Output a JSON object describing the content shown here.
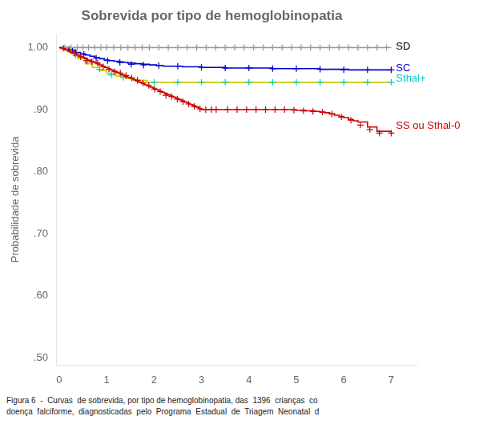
{
  "chart_data": {
    "type": "line",
    "title": "Sobrevida por tipo de hemoglobinopatia",
    "ylabel": "Probabilidade de sobrevida",
    "caption": [
      "Figura 6  -  Curvas  de sobrevida, por tipo de hemoglobinopatia, das  1396  crianças  co",
      "doença  falciforme,  diagnosticadas  pelo  Programa  Estadual  de  Triagem  Neonatal  d"
    ],
    "xlim": [
      -0.05,
      7.55
    ],
    "ylim": [
      0.488,
      1.022
    ],
    "xticks": [
      0,
      1,
      2,
      3,
      4,
      5,
      6,
      7
    ],
    "yticks": [
      {
        "value": 0.5,
        "label": ".50"
      },
      {
        "value": 0.6,
        "label": ".60"
      },
      {
        "value": 0.7,
        "label": ".70"
      },
      {
        "value": 0.8,
        "label": ".80"
      },
      {
        "value": 0.9,
        "label": ".90"
      },
      {
        "value": 1.0,
        "label": "1.00"
      }
    ],
    "grid": false,
    "series": [
      {
        "name": "SD",
        "type": "line",
        "line_style": "step",
        "color": "#999999",
        "x": [
          0.0,
          7.0
        ],
        "values": [
          1.0,
          1.0
        ]
      },
      {
        "name": "SD",
        "type": "scatter",
        "marker": "+",
        "color": "#999999",
        "x": [
          0.12,
          0.25,
          0.38,
          0.5,
          0.62,
          0.75,
          0.88,
          1.0,
          1.15,
          1.3,
          1.45,
          1.6,
          1.75,
          1.9,
          2.1,
          2.3,
          2.5,
          2.7,
          2.9,
          3.1,
          3.3,
          3.5,
          3.7,
          3.9,
          4.1,
          4.3,
          4.5,
          4.7,
          4.9,
          5.1,
          5.3,
          5.5,
          5.7,
          5.9,
          6.1,
          6.3,
          6.5,
          6.7,
          6.9
        ],
        "values": [
          1.0,
          1.0,
          1.0,
          1.0,
          1.0,
          1.0,
          1.0,
          1.0,
          1.0,
          1.0,
          1.0,
          1.0,
          1.0,
          1.0,
          1.0,
          1.0,
          1.0,
          1.0,
          1.0,
          1.0,
          1.0,
          1.0,
          1.0,
          1.0,
          1.0,
          1.0,
          1.0,
          1.0,
          1.0,
          1.0,
          1.0,
          1.0,
          1.0,
          1.0,
          1.0,
          1.0,
          1.0,
          1.0,
          1.0
        ]
      },
      {
        "name": "SC",
        "type": "line",
        "line_style": "step",
        "color": "#0000cc",
        "x": [
          0,
          0.2,
          0.35,
          0.45,
          0.55,
          0.65,
          0.75,
          0.85,
          0.95,
          1.05,
          1.15,
          1.25,
          1.35,
          1.45,
          1.6,
          1.75,
          1.9,
          2.05,
          2.2,
          2.4,
          2.6,
          2.8,
          3.0,
          3.5,
          4.0,
          4.5,
          5.0,
          5.5,
          5.7,
          5.9,
          6.1,
          6.5,
          7.0
        ],
        "values": [
          1.0,
          0.996,
          0.992,
          0.99,
          0.988,
          0.986,
          0.984,
          0.982,
          0.98,
          0.979,
          0.978,
          0.977,
          0.976,
          0.975,
          0.974,
          0.973,
          0.972,
          0.971,
          0.97,
          0.97,
          0.969,
          0.969,
          0.968,
          0.967,
          0.967,
          0.966,
          0.966,
          0.965,
          0.965,
          0.965,
          0.964,
          0.964,
          0.964
        ]
      },
      {
        "name": "SC",
        "type": "scatter",
        "marker": "+",
        "color": "#0000cc",
        "x": [
          0.28,
          0.52,
          0.78,
          1.02,
          1.28,
          1.52,
          1.78,
          2.1,
          2.5,
          3.0,
          3.5,
          4.0,
          4.5,
          5.0,
          5.5,
          6.0,
          6.5,
          7.0
        ],
        "values": [
          0.994,
          0.989,
          0.983,
          0.979,
          0.976,
          0.973,
          0.972,
          0.971,
          0.97,
          0.968,
          0.967,
          0.967,
          0.966,
          0.966,
          0.965,
          0.964,
          0.964,
          0.964
        ]
      },
      {
        "name": "Sthal+",
        "type": "line",
        "line_style": "step",
        "color": "#cccc00",
        "x": [
          0,
          0.25,
          0.4,
          0.55,
          0.7,
          0.85,
          1.0,
          1.2,
          1.4,
          1.6,
          1.85,
          2.1,
          2.4,
          2.7,
          3.0,
          3.2,
          3.5,
          7.0
        ],
        "values": [
          1.0,
          0.99,
          0.982,
          0.974,
          0.968,
          0.963,
          0.958,
          0.954,
          0.95,
          0.947,
          0.944,
          0.944,
          0.944,
          0.944,
          0.944,
          0.944,
          0.944,
          0.944
        ]
      },
      {
        "name": "Sthal+",
        "type": "scatter",
        "marker": "+",
        "color": "#00cccc",
        "x": [
          0.35,
          0.6,
          0.85,
          1.1,
          1.35,
          1.65,
          2.0,
          2.5,
          3.0,
          3.5,
          4.0,
          4.5,
          5.0,
          5.5,
          6.0,
          6.5,
          7.0
        ],
        "values": [
          0.987,
          0.978,
          0.965,
          0.956,
          0.952,
          0.948,
          0.944,
          0.944,
          0.944,
          0.944,
          0.944,
          0.944,
          0.944,
          0.944,
          0.944,
          0.944,
          0.944
        ]
      },
      {
        "name": "SS ou Sthal-0",
        "type": "line",
        "line_style": "step",
        "color": "#cc0000",
        "x": [
          0,
          0.06,
          0.12,
          0.18,
          0.24,
          0.3,
          0.36,
          0.42,
          0.48,
          0.54,
          0.6,
          0.66,
          0.72,
          0.78,
          0.84,
          0.9,
          0.96,
          1.02,
          1.08,
          1.14,
          1.2,
          1.26,
          1.32,
          1.38,
          1.44,
          1.5,
          1.56,
          1.62,
          1.68,
          1.74,
          1.8,
          1.86,
          1.92,
          1.98,
          2.04,
          2.1,
          2.16,
          2.22,
          2.28,
          2.34,
          2.4,
          2.46,
          2.52,
          2.58,
          2.64,
          2.7,
          2.76,
          2.82,
          2.88,
          2.94,
          3.0,
          3.1,
          3.2,
          3.3,
          3.4,
          3.5,
          3.6,
          3.7,
          3.8,
          3.9,
          4.0,
          4.1,
          4.2,
          4.3,
          4.4,
          4.5,
          4.6,
          4.7,
          4.8,
          4.9,
          5.0,
          5.1,
          5.2,
          5.3,
          5.4,
          5.5,
          5.6,
          5.7,
          5.8,
          5.9,
          6.0,
          6.1,
          6.2,
          6.3,
          6.5,
          6.7,
          7.0
        ],
        "values": [
          1.0,
          0.998,
          0.996,
          0.994,
          0.992,
          0.99,
          0.988,
          0.986,
          0.984,
          0.982,
          0.98,
          0.978,
          0.976,
          0.974,
          0.972,
          0.97,
          0.968,
          0.966,
          0.964,
          0.962,
          0.96,
          0.958,
          0.956,
          0.954,
          0.952,
          0.95,
          0.948,
          0.946,
          0.944,
          0.942,
          0.94,
          0.938,
          0.936,
          0.934,
          0.932,
          0.93,
          0.928,
          0.926,
          0.924,
          0.922,
          0.92,
          0.918,
          0.916,
          0.914,
          0.912,
          0.91,
          0.908,
          0.906,
          0.904,
          0.902,
          0.9,
          0.9,
          0.9,
          0.9,
          0.9,
          0.9,
          0.9,
          0.9,
          0.9,
          0.9,
          0.9,
          0.9,
          0.9,
          0.9,
          0.9,
          0.9,
          0.9,
          0.9,
          0.9,
          0.9,
          0.899,
          0.899,
          0.898,
          0.898,
          0.897,
          0.896,
          0.895,
          0.893,
          0.891,
          0.889,
          0.887,
          0.884,
          0.882,
          0.88,
          0.872,
          0.865,
          0.862
        ]
      },
      {
        "name": "SS ou Sthal-0",
        "type": "scatter",
        "marker": "+",
        "color": "#cc0000",
        "x": [
          0.09,
          0.21,
          0.33,
          0.45,
          0.57,
          0.69,
          0.81,
          0.93,
          1.05,
          1.17,
          1.29,
          1.41,
          1.53,
          1.65,
          1.77,
          1.89,
          2.01,
          2.13,
          2.25,
          2.37,
          2.49,
          2.61,
          2.73,
          2.85,
          2.97,
          3.09,
          3.21,
          3.31,
          3.55,
          3.75,
          3.95,
          4.15,
          4.35,
          4.55,
          4.75,
          4.95,
          5.15,
          5.35,
          5.55,
          5.75,
          5.95,
          6.15,
          6.35,
          6.55,
          6.75,
          7.0
        ],
        "values": [
          0.999,
          0.997,
          0.991,
          0.985,
          0.979,
          0.977,
          0.975,
          0.969,
          0.965,
          0.961,
          0.959,
          0.955,
          0.951,
          0.947,
          0.943,
          0.939,
          0.933,
          0.929,
          0.923,
          0.921,
          0.917,
          0.913,
          0.909,
          0.905,
          0.901,
          0.9,
          0.9,
          0.9,
          0.9,
          0.9,
          0.9,
          0.9,
          0.9,
          0.9,
          0.9,
          0.899,
          0.898,
          0.897,
          0.896,
          0.893,
          0.888,
          0.883,
          0.875,
          0.868,
          0.862,
          0.862
        ]
      }
    ],
    "annotations": [
      {
        "text": "SD",
        "x": 7.1,
        "y": 1.001,
        "color": "#000000"
      },
      {
        "text": "SC",
        "x": 7.1,
        "y": 0.967,
        "color": "#0000cc"
      },
      {
        "text": "Sthal+",
        "x": 7.1,
        "y": 0.95,
        "color": "#00cccc"
      },
      {
        "text": "SS ou Sthal-0",
        "x": 7.1,
        "y": 0.873,
        "color": "#cc0000"
      }
    ]
  }
}
